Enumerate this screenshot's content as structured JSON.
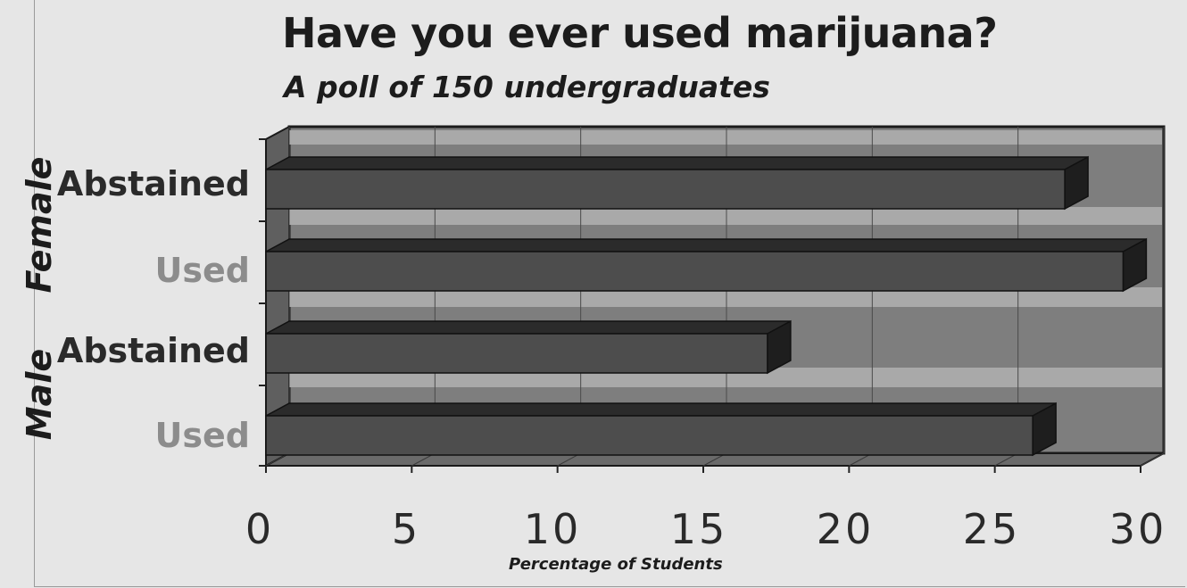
{
  "chart_data": {
    "type": "bar",
    "orientation": "horizontal",
    "title": "Have you ever used marijuana?",
    "subtitle": "A poll of 150 undergraduates",
    "xlabel": "Percentage of Students",
    "xlim": [
      0,
      30
    ],
    "xticks": [
      "0",
      "5",
      "10",
      "15",
      "20",
      "25",
      "30"
    ],
    "groups": [
      "Female",
      "Male"
    ],
    "categories": [
      {
        "group": "Female",
        "label": "Abstained",
        "value": 27.4,
        "label_color": "#2a2a2a"
      },
      {
        "group": "Female",
        "label": "Used",
        "value": 29.4,
        "label_color": "#8c8c8c"
      },
      {
        "group": "Male",
        "label": "Abstained",
        "value": 17.2,
        "label_color": "#2a2a2a"
      },
      {
        "group": "Male",
        "label": "Used",
        "value": 26.3,
        "label_color": "#8c8c8c"
      }
    ],
    "grid": true,
    "colors": {
      "bar_face": "#4d4d4d",
      "bar_top": "#2b2b2b",
      "bar_side": "#1e1e1e",
      "back_wall": "#7e7e7e",
      "wall_strip": "#a9a9a9",
      "floor": "#6a6a6a"
    }
  }
}
